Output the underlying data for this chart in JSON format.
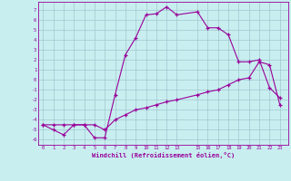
{
  "xlabel": "Windchill (Refroidissement éolien,°C)",
  "bg_color": "#c8eef0",
  "line_color": "#990099",
  "grid_color": "#a0c8d0",
  "x_ticks": [
    0,
    1,
    2,
    3,
    4,
    5,
    6,
    7,
    8,
    9,
    10,
    11,
    12,
    13,
    15,
    16,
    17,
    18,
    19,
    20,
    21,
    22,
    23
  ],
  "y_ticks": [
    -6,
    -5,
    -4,
    -3,
    -2,
    -1,
    0,
    1,
    2,
    3,
    4,
    5,
    6,
    7
  ],
  "ylim": [
    -6.5,
    7.8
  ],
  "xlim": [
    -0.5,
    23.8
  ],
  "series1_x": [
    0,
    1,
    2,
    3,
    4,
    5,
    6,
    7,
    8,
    9,
    10,
    11,
    12,
    13,
    15,
    16,
    17,
    18,
    19,
    20,
    21,
    22,
    23
  ],
  "series1_y": [
    -4.5,
    -5.0,
    -5.5,
    -4.5,
    -4.5,
    -5.8,
    -5.8,
    -1.5,
    2.5,
    4.2,
    6.5,
    6.6,
    7.3,
    6.5,
    6.8,
    5.2,
    5.2,
    4.5,
    1.8,
    1.8,
    2.0,
    -0.8,
    -1.8
  ],
  "series2_x": [
    0,
    1,
    2,
    3,
    4,
    5,
    6,
    7,
    8,
    9,
    10,
    11,
    12,
    13,
    15,
    16,
    17,
    18,
    19,
    20,
    21,
    22,
    23
  ],
  "series2_y": [
    -4.5,
    -4.5,
    -4.5,
    -4.5,
    -4.5,
    -4.5,
    -5.0,
    -4.0,
    -3.5,
    -3.0,
    -2.8,
    -2.5,
    -2.2,
    -2.0,
    -1.5,
    -1.2,
    -1.0,
    -0.5,
    0.0,
    0.2,
    1.8,
    1.5,
    -2.5
  ]
}
